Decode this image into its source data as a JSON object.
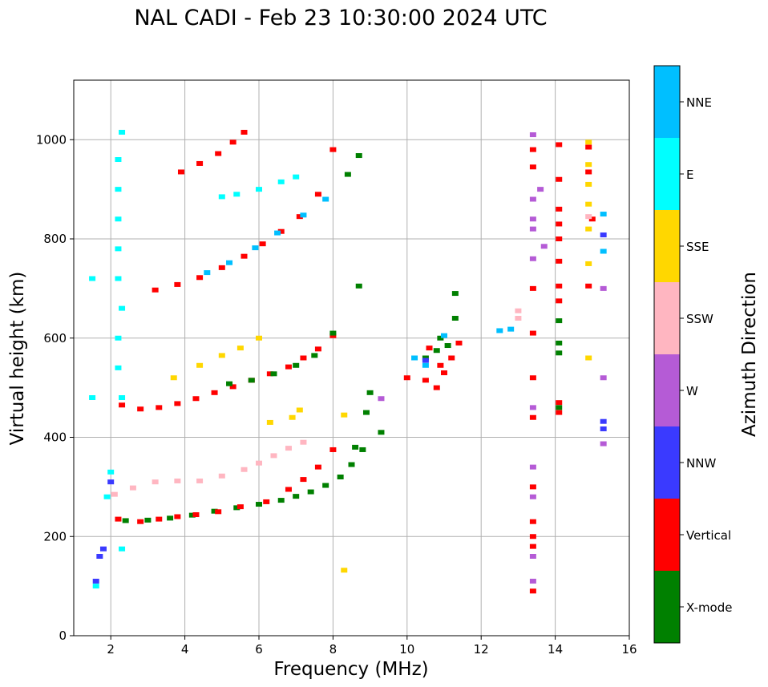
{
  "chart_data": {
    "type": "scatter",
    "title": "NAL CADI - Feb 23 10:30:00 2024 UTC",
    "xlabel": "Frequency (MHz)",
    "ylabel": "Virtual height (km)",
    "xlim": [
      1,
      16
    ],
    "ylim": [
      0,
      1120
    ],
    "xticks": [
      2,
      4,
      6,
      8,
      10,
      12,
      14,
      16
    ],
    "yticks": [
      0,
      200,
      400,
      600,
      800,
      1000
    ],
    "grid": true,
    "colorbar": {
      "label": "Azimuth Direction",
      "categories": [
        "X-mode",
        "Vertical",
        "NNW",
        "W",
        "SSW",
        "SSE",
        "E",
        "NNE"
      ],
      "colors": [
        "#008000",
        "#ff0000",
        "#3a3aff",
        "#b55bd6",
        "#ffb6c1",
        "#ffd700",
        "#00ffff",
        "#00bfff"
      ]
    },
    "traces": [
      {
        "category": "X-mode",
        "points": [
          [
            2.4,
            232
          ],
          [
            3.0,
            233
          ],
          [
            3.6,
            237
          ],
          [
            4.2,
            243
          ],
          [
            4.8,
            251
          ],
          [
            5.4,
            258
          ],
          [
            6.0,
            265
          ],
          [
            6.6,
            273
          ],
          [
            7.0,
            281
          ],
          [
            7.4,
            290
          ],
          [
            7.8,
            303
          ],
          [
            8.2,
            320
          ],
          [
            8.5,
            345
          ],
          [
            8.8,
            375
          ]
        ]
      },
      {
        "category": "Vertical",
        "points": [
          [
            2.2,
            235
          ],
          [
            2.8,
            230
          ],
          [
            3.3,
            235
          ],
          [
            3.8,
            240
          ],
          [
            4.3,
            244
          ],
          [
            4.9,
            250
          ],
          [
            5.5,
            260
          ],
          [
            6.2,
            270
          ],
          [
            6.8,
            295
          ],
          [
            7.2,
            315
          ],
          [
            7.6,
            340
          ],
          [
            8.0,
            375
          ]
        ]
      },
      {
        "category": "SSW",
        "points": [
          [
            2.1,
            285
          ],
          [
            2.6,
            298
          ],
          [
            3.2,
            310
          ],
          [
            3.8,
            312
          ],
          [
            4.4,
            312
          ],
          [
            5.0,
            322
          ],
          [
            5.6,
            335
          ],
          [
            6.0,
            348
          ],
          [
            6.4,
            363
          ],
          [
            6.8,
            378
          ],
          [
            7.2,
            390
          ]
        ]
      },
      {
        "category": "Vertical",
        "points": [
          [
            2.3,
            465
          ],
          [
            2.8,
            457
          ],
          [
            3.3,
            460
          ],
          [
            3.8,
            468
          ],
          [
            4.3,
            478
          ],
          [
            4.8,
            490
          ],
          [
            5.3,
            502
          ],
          [
            5.8,
            515
          ],
          [
            6.3,
            528
          ],
          [
            6.8,
            542
          ],
          [
            7.2,
            560
          ],
          [
            7.6,
            578
          ],
          [
            8.0,
            605
          ]
        ]
      },
      {
        "category": "X-mode",
        "points": [
          [
            5.2,
            508
          ],
          [
            5.8,
            515
          ],
          [
            6.4,
            528
          ],
          [
            7.0,
            545
          ],
          [
            7.5,
            565
          ],
          [
            8.0,
            610
          ]
        ]
      },
      {
        "category": "SSE",
        "points": [
          [
            3.7,
            520
          ],
          [
            4.4,
            545
          ],
          [
            5.0,
            565
          ],
          [
            5.5,
            580
          ],
          [
            6.0,
            600
          ]
        ]
      },
      {
        "category": "Vertical",
        "points": [
          [
            3.2,
            697
          ],
          [
            3.8,
            708
          ],
          [
            4.4,
            722
          ],
          [
            5.0,
            742
          ],
          [
            5.6,
            765
          ],
          [
            6.1,
            790
          ],
          [
            6.6,
            815
          ],
          [
            7.1,
            845
          ],
          [
            7.6,
            890
          ],
          [
            8.0,
            980
          ]
        ]
      },
      {
        "category": "NNE",
        "points": [
          [
            4.6,
            732
          ],
          [
            5.2,
            752
          ],
          [
            5.9,
            782
          ],
          [
            6.5,
            812
          ],
          [
            7.2,
            848
          ],
          [
            7.8,
            880
          ]
        ]
      },
      {
        "category": "Vertical",
        "points": [
          [
            3.9,
            935
          ],
          [
            4.4,
            952
          ],
          [
            4.9,
            972
          ],
          [
            5.3,
            995
          ],
          [
            5.6,
            1015
          ]
        ]
      },
      {
        "category": "E",
        "points": [
          [
            2.3,
            1015
          ],
          [
            2.2,
            960
          ],
          [
            2.2,
            900
          ],
          [
            2.2,
            840
          ],
          [
            2.2,
            780
          ],
          [
            2.2,
            720
          ],
          [
            2.3,
            660
          ],
          [
            2.2,
            600
          ],
          [
            2.2,
            540
          ],
          [
            2.3,
            480
          ],
          [
            1.5,
            720
          ],
          [
            1.5,
            480
          ]
        ]
      },
      {
        "category": "E",
        "points": [
          [
            5.0,
            885
          ],
          [
            5.4,
            890
          ],
          [
            6.0,
            900
          ],
          [
            6.6,
            915
          ],
          [
            7.0,
            925
          ]
        ]
      },
      {
        "category": "X-mode",
        "points": [
          [
            8.6,
            380
          ],
          [
            8.9,
            450
          ],
          [
            9.0,
            490
          ],
          [
            9.3,
            410
          ],
          [
            8.7,
            705
          ],
          [
            8.4,
            930
          ],
          [
            8.7,
            968
          ]
        ]
      },
      {
        "category": "Vertical",
        "points": [
          [
            10.0,
            520
          ],
          [
            10.5,
            515
          ],
          [
            10.8,
            500
          ],
          [
            11.0,
            530
          ],
          [
            11.2,
            560
          ],
          [
            11.4,
            590
          ],
          [
            10.6,
            580
          ],
          [
            10.9,
            545
          ]
        ]
      },
      {
        "category": "X-mode",
        "points": [
          [
            10.5,
            560
          ],
          [
            10.8,
            575
          ],
          [
            11.1,
            585
          ],
          [
            11.3,
            640
          ],
          [
            10.9,
            600
          ],
          [
            11.3,
            690
          ]
        ]
      },
      {
        "category": "NNE",
        "points": [
          [
            10.2,
            560
          ],
          [
            10.5,
            545
          ],
          [
            11.0,
            605
          ],
          [
            12.5,
            615
          ],
          [
            12.8,
            618
          ]
        ]
      },
      {
        "category": "W",
        "points": [
          [
            13.4,
            1010
          ],
          [
            13.4,
            880
          ],
          [
            13.4,
            840
          ],
          [
            13.4,
            820
          ],
          [
            13.4,
            760
          ],
          [
            13.4,
            460
          ],
          [
            13.4,
            340
          ],
          [
            13.4,
            280
          ],
          [
            13.4,
            160
          ],
          [
            13.4,
            110
          ],
          [
            13.6,
            900
          ],
          [
            13.7,
            785
          ]
        ]
      },
      {
        "category": "Vertical",
        "points": [
          [
            13.4,
            980
          ],
          [
            13.4,
            945
          ],
          [
            13.4,
            700
          ],
          [
            13.4,
            610
          ],
          [
            13.4,
            520
          ],
          [
            13.4,
            440
          ],
          [
            13.4,
            300
          ],
          [
            13.4,
            230
          ],
          [
            13.4,
            200
          ],
          [
            13.4,
            180
          ],
          [
            13.4,
            90
          ]
        ]
      },
      {
        "category": "Vertical",
        "points": [
          [
            14.1,
            990
          ],
          [
            14.1,
            920
          ],
          [
            14.1,
            860
          ],
          [
            14.1,
            830
          ],
          [
            14.1,
            800
          ],
          [
            14.1,
            755
          ],
          [
            14.1,
            705
          ],
          [
            14.1,
            675
          ],
          [
            14.1,
            470
          ],
          [
            14.1,
            450
          ]
        ]
      },
      {
        "category": "X-mode",
        "points": [
          [
            14.1,
            635
          ],
          [
            14.1,
            590
          ],
          [
            14.1,
            570
          ],
          [
            14.1,
            460
          ]
        ]
      },
      {
        "category": "SSE",
        "points": [
          [
            14.9,
            995
          ],
          [
            14.9,
            950
          ],
          [
            14.9,
            910
          ],
          [
            14.9,
            870
          ],
          [
            14.9,
            820
          ],
          [
            14.9,
            750
          ],
          [
            14.9,
            560
          ]
        ]
      },
      {
        "category": "Vertical",
        "points": [
          [
            14.9,
            985
          ],
          [
            14.9,
            935
          ],
          [
            14.9,
            705
          ],
          [
            15.0,
            840
          ]
        ]
      },
      {
        "category": "SSW",
        "points": [
          [
            14.9,
            845
          ],
          [
            13.0,
            655
          ],
          [
            13.0,
            640
          ]
        ]
      },
      {
        "category": "NNE",
        "points": [
          [
            15.3,
            850
          ],
          [
            15.3,
            775
          ]
        ]
      },
      {
        "category": "NNW",
        "points": [
          [
            15.3,
            808
          ],
          [
            15.3,
            432
          ],
          [
            15.3,
            417
          ],
          [
            10.5,
            555
          ]
        ]
      },
      {
        "category": "W",
        "points": [
          [
            15.3,
            700
          ],
          [
            15.3,
            520
          ],
          [
            15.3,
            387
          ],
          [
            9.3,
            478
          ]
        ]
      },
      {
        "category": "SSE",
        "points": [
          [
            6.3,
            430
          ],
          [
            6.9,
            440
          ],
          [
            7.1,
            455
          ],
          [
            8.3,
            445
          ],
          [
            8.3,
            132
          ]
        ]
      },
      {
        "category": "NNW",
        "points": [
          [
            1.7,
            160
          ],
          [
            1.6,
            110
          ],
          [
            1.8,
            175
          ],
          [
            2.0,
            310
          ]
        ]
      },
      {
        "category": "E",
        "points": [
          [
            1.6,
            100
          ],
          [
            1.9,
            280
          ],
          [
            2.0,
            330
          ],
          [
            2.3,
            175
          ]
        ]
      }
    ]
  }
}
